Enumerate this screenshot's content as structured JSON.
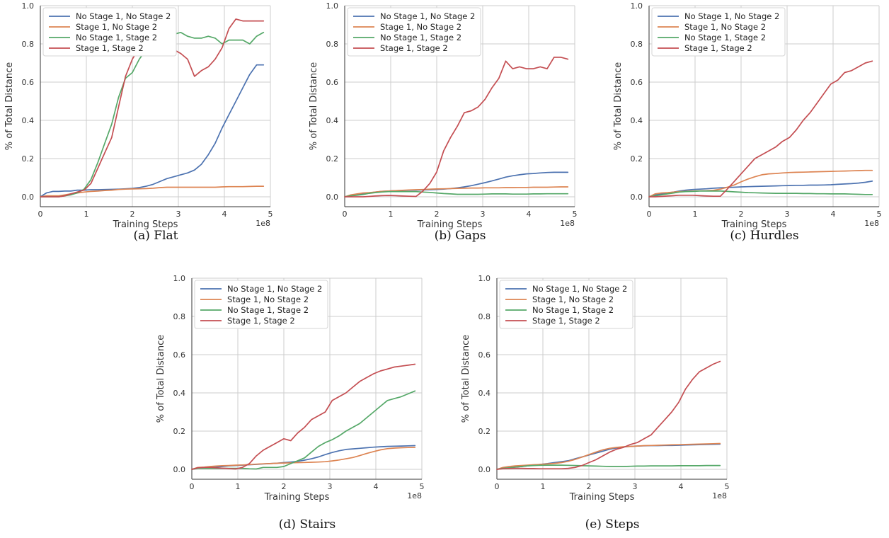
{
  "legend_labels": [
    "No Stage 1, No Stage 2",
    "Stage 1, No Stage 2",
    "No Stage 1, Stage 2",
    "Stage 1, Stage 2"
  ],
  "colors": [
    "#4c72b0",
    "#dd8452",
    "#55a868",
    "#c44e52"
  ],
  "chart_data": [
    {
      "type": "line",
      "caption": "(a) Flat",
      "xlabel": "Training Steps",
      "ylabel": "% of Total Distance",
      "x_scale_label": "1e8",
      "xlim": [
        0,
        5
      ],
      "ylim": [
        0,
        1.0
      ],
      "x_ticks": [
        "0",
        "1",
        "2",
        "3",
        "4",
        "5"
      ],
      "y_ticks": [
        "0.0",
        "0.2",
        "0.4",
        "0.6",
        "0.8",
        "1.0"
      ],
      "grid": true,
      "legend_position": "top-left",
      "x": [
        0,
        0.13,
        0.27,
        0.4,
        0.53,
        0.66,
        0.8,
        0.95,
        1.1,
        1.25,
        1.4,
        1.55,
        1.7,
        1.85,
        2.0,
        2.15,
        2.3,
        2.45,
        2.6,
        2.75,
        2.9,
        3.05,
        3.2,
        3.35,
        3.5,
        3.65,
        3.8,
        3.95,
        4.1,
        4.25,
        4.4,
        4.55,
        4.7,
        4.85
      ],
      "series": [
        {
          "name": "No Stage 1, No Stage 2",
          "values": [
            0.0,
            0.02,
            0.028,
            0.028,
            0.03,
            0.03,
            0.035,
            0.035,
            0.037,
            0.037,
            0.038,
            0.039,
            0.04,
            0.042,
            0.044,
            0.048,
            0.055,
            0.065,
            0.08,
            0.095,
            0.105,
            0.115,
            0.125,
            0.14,
            0.17,
            0.22,
            0.28,
            0.36,
            0.43,
            0.5,
            0.57,
            0.64,
            0.69,
            0.69
          ]
        },
        {
          "name": "Stage 1, No Stage 2",
          "values": [
            0.0,
            0.005,
            0.005,
            0.005,
            0.01,
            0.015,
            0.02,
            0.025,
            0.028,
            0.03,
            0.033,
            0.035,
            0.038,
            0.04,
            0.041,
            0.042,
            0.043,
            0.045,
            0.048,
            0.05,
            0.05,
            0.05,
            0.05,
            0.05,
            0.05,
            0.05,
            0.05,
            0.052,
            0.053,
            0.053,
            0.053,
            0.054,
            0.055,
            0.055
          ]
        },
        {
          "name": "No Stage 1, Stage 2",
          "values": [
            0.0,
            0.0,
            0.0,
            0.0,
            0.005,
            0.01,
            0.02,
            0.04,
            0.09,
            0.18,
            0.28,
            0.38,
            0.52,
            0.62,
            0.65,
            0.72,
            0.77,
            0.78,
            0.8,
            0.86,
            0.85,
            0.86,
            0.84,
            0.83,
            0.83,
            0.84,
            0.83,
            0.8,
            0.82,
            0.82,
            0.82,
            0.8,
            0.84,
            0.86
          ]
        },
        {
          "name": "Stage 1, Stage 2",
          "values": [
            0.0,
            0.0,
            0.0,
            0.0,
            0.005,
            0.015,
            0.025,
            0.035,
            0.07,
            0.15,
            0.23,
            0.31,
            0.47,
            0.63,
            0.72,
            0.78,
            0.83,
            0.84,
            0.84,
            0.8,
            0.77,
            0.75,
            0.72,
            0.63,
            0.66,
            0.68,
            0.72,
            0.78,
            0.88,
            0.93,
            0.92,
            0.92,
            0.92,
            0.92
          ]
        }
      ]
    },
    {
      "type": "line",
      "caption": "(b) Gaps",
      "xlabel": "Training Steps",
      "ylabel": "% of Total Distance",
      "x_scale_label": "1e8",
      "xlim": [
        0,
        5
      ],
      "ylim": [
        0,
        1.0
      ],
      "x_ticks": [
        "0",
        "1",
        "2",
        "3",
        "4",
        "5"
      ],
      "y_ticks": [
        "0.0",
        "0.2",
        "0.4",
        "0.6",
        "0.8",
        "1.0"
      ],
      "grid": true,
      "legend_position": "top-left",
      "x": [
        0,
        0.13,
        0.27,
        0.4,
        0.53,
        0.66,
        0.8,
        0.95,
        1.1,
        1.25,
        1.4,
        1.55,
        1.7,
        1.85,
        2.0,
        2.15,
        2.3,
        2.45,
        2.6,
        2.75,
        2.9,
        3.05,
        3.2,
        3.35,
        3.5,
        3.65,
        3.8,
        3.95,
        4.1,
        4.25,
        4.4,
        4.55,
        4.7,
        4.85
      ],
      "series": [
        {
          "name": "No Stage 1, No Stage 2",
          "values": [
            0.0,
            0.005,
            0.01,
            0.015,
            0.02,
            0.025,
            0.028,
            0.03,
            0.032,
            0.033,
            0.034,
            0.035,
            0.036,
            0.037,
            0.038,
            0.04,
            0.043,
            0.047,
            0.052,
            0.058,
            0.066,
            0.074,
            0.083,
            0.093,
            0.103,
            0.11,
            0.115,
            0.12,
            0.122,
            0.125,
            0.127,
            0.128,
            0.128,
            0.128
          ]
        },
        {
          "name": "Stage 1, No Stage 2",
          "values": [
            0.0,
            0.01,
            0.015,
            0.02,
            0.022,
            0.025,
            0.028,
            0.03,
            0.032,
            0.034,
            0.036,
            0.037,
            0.038,
            0.04,
            0.041,
            0.042,
            0.043,
            0.044,
            0.045,
            0.046,
            0.046,
            0.047,
            0.047,
            0.047,
            0.048,
            0.048,
            0.049,
            0.049,
            0.05,
            0.05,
            0.05,
            0.051,
            0.052,
            0.052
          ]
        },
        {
          "name": "No Stage 1, Stage 2",
          "values": [
            0.0,
            0.005,
            0.008,
            0.012,
            0.018,
            0.022,
            0.025,
            0.027,
            0.027,
            0.027,
            0.027,
            0.027,
            0.025,
            0.023,
            0.02,
            0.017,
            0.015,
            0.013,
            0.013,
            0.013,
            0.013,
            0.014,
            0.015,
            0.015,
            0.015,
            0.014,
            0.014,
            0.014,
            0.015,
            0.015,
            0.016,
            0.016,
            0.016,
            0.016
          ]
        },
        {
          "name": "Stage 1, Stage 2",
          "values": [
            0.0,
            0.0,
            0.0,
            0.0,
            0.002,
            0.004,
            0.006,
            0.007,
            0.006,
            0.004,
            0.003,
            0.002,
            0.03,
            0.07,
            0.13,
            0.24,
            0.31,
            0.37,
            0.44,
            0.45,
            0.47,
            0.51,
            0.57,
            0.62,
            0.71,
            0.67,
            0.68,
            0.67,
            0.67,
            0.68,
            0.67,
            0.73,
            0.73,
            0.72
          ]
        }
      ]
    },
    {
      "type": "line",
      "caption": "(c) Hurdles",
      "xlabel": "Training Steps",
      "ylabel": "% of Total Distance",
      "x_scale_label": "1e8",
      "xlim": [
        0,
        5
      ],
      "ylim": [
        0,
        1.0
      ],
      "x_ticks": [
        "0",
        "1",
        "2",
        "3",
        "4",
        "5"
      ],
      "y_ticks": [
        "0.0",
        "0.2",
        "0.4",
        "0.6",
        "0.8",
        "1.0"
      ],
      "grid": true,
      "legend_position": "top-left",
      "x": [
        0,
        0.13,
        0.27,
        0.4,
        0.53,
        0.66,
        0.8,
        0.95,
        1.1,
        1.25,
        1.4,
        1.55,
        1.7,
        1.85,
        2.0,
        2.15,
        2.3,
        2.45,
        2.6,
        2.75,
        2.9,
        3.05,
        3.2,
        3.35,
        3.5,
        3.65,
        3.8,
        3.95,
        4.1,
        4.25,
        4.4,
        4.55,
        4.7,
        4.85
      ],
      "series": [
        {
          "name": "No Stage 1, No Stage 2",
          "values": [
            0.0,
            0.01,
            0.015,
            0.02,
            0.025,
            0.03,
            0.035,
            0.038,
            0.04,
            0.042,
            0.045,
            0.047,
            0.049,
            0.05,
            0.052,
            0.053,
            0.054,
            0.055,
            0.056,
            0.057,
            0.058,
            0.059,
            0.06,
            0.06,
            0.061,
            0.061,
            0.062,
            0.063,
            0.065,
            0.067,
            0.069,
            0.072,
            0.076,
            0.082
          ]
        },
        {
          "name": "Stage 1, No Stage 2",
          "values": [
            0.0,
            0.015,
            0.02,
            0.022,
            0.025,
            0.027,
            0.029,
            0.03,
            0.031,
            0.032,
            0.034,
            0.04,
            0.05,
            0.062,
            0.078,
            0.093,
            0.105,
            0.115,
            0.12,
            0.122,
            0.125,
            0.127,
            0.128,
            0.129,
            0.13,
            0.131,
            0.132,
            0.133,
            0.134,
            0.135,
            0.136,
            0.137,
            0.138,
            0.138
          ]
        },
        {
          "name": "No Stage 1, Stage 2",
          "values": [
            0.0,
            0.005,
            0.01,
            0.015,
            0.02,
            0.025,
            0.027,
            0.028,
            0.03,
            0.03,
            0.03,
            0.03,
            0.028,
            0.026,
            0.024,
            0.022,
            0.021,
            0.02,
            0.019,
            0.018,
            0.018,
            0.018,
            0.018,
            0.017,
            0.017,
            0.016,
            0.016,
            0.015,
            0.015,
            0.015,
            0.014,
            0.013,
            0.012,
            0.012
          ]
        },
        {
          "name": "Stage 1, Stage 2",
          "values": [
            0.0,
            0.0,
            0.002,
            0.004,
            0.006,
            0.008,
            0.008,
            0.008,
            0.006,
            0.004,
            0.003,
            0.003,
            0.04,
            0.08,
            0.12,
            0.16,
            0.2,
            0.22,
            0.24,
            0.26,
            0.29,
            0.31,
            0.35,
            0.4,
            0.44,
            0.49,
            0.54,
            0.59,
            0.61,
            0.65,
            0.66,
            0.68,
            0.7,
            0.71
          ]
        }
      ]
    },
    {
      "type": "line",
      "caption": "(d) Stairs",
      "xlabel": "Training Steps",
      "ylabel": "% of Total Distance",
      "x_scale_label": "1e8",
      "xlim": [
        0,
        5
      ],
      "ylim": [
        0,
        1.0
      ],
      "x_ticks": [
        "0",
        "1",
        "2",
        "3",
        "4",
        "5"
      ],
      "y_ticks": [
        "0.0",
        "0.2",
        "0.4",
        "0.6",
        "0.8",
        "1.0"
      ],
      "grid": true,
      "legend_position": "top-left",
      "x": [
        0,
        0.13,
        0.27,
        0.4,
        0.53,
        0.66,
        0.8,
        0.95,
        1.1,
        1.25,
        1.4,
        1.55,
        1.7,
        1.85,
        2.0,
        2.15,
        2.3,
        2.45,
        2.6,
        2.75,
        2.9,
        3.05,
        3.2,
        3.35,
        3.5,
        3.65,
        3.8,
        3.95,
        4.1,
        4.25,
        4.4,
        4.55,
        4.7,
        4.85
      ],
      "series": [
        {
          "name": "No Stage 1, No Stage 2",
          "values": [
            0.0,
            0.005,
            0.008,
            0.01,
            0.012,
            0.015,
            0.018,
            0.02,
            0.022,
            0.024,
            0.026,
            0.028,
            0.03,
            0.032,
            0.035,
            0.038,
            0.042,
            0.048,
            0.055,
            0.065,
            0.077,
            0.088,
            0.097,
            0.104,
            0.107,
            0.11,
            0.113,
            0.116,
            0.118,
            0.12,
            0.121,
            0.122,
            0.123,
            0.124
          ]
        },
        {
          "name": "Stage 1, No Stage 2",
          "values": [
            0.0,
            0.01,
            0.012,
            0.015,
            0.017,
            0.019,
            0.02,
            0.022,
            0.023,
            0.025,
            0.027,
            0.029,
            0.03,
            0.032,
            0.033,
            0.034,
            0.035,
            0.036,
            0.037,
            0.038,
            0.04,
            0.044,
            0.049,
            0.055,
            0.062,
            0.072,
            0.083,
            0.093,
            0.102,
            0.108,
            0.111,
            0.113,
            0.114,
            0.115
          ]
        },
        {
          "name": "No Stage 1, Stage 2",
          "values": [
            0.0,
            0.005,
            0.005,
            0.005,
            0.005,
            0.005,
            0.005,
            0.005,
            0.005,
            0.003,
            0.002,
            0.01,
            0.01,
            0.01,
            0.015,
            0.03,
            0.045,
            0.06,
            0.09,
            0.12,
            0.14,
            0.155,
            0.175,
            0.2,
            0.22,
            0.24,
            0.27,
            0.3,
            0.33,
            0.36,
            0.37,
            0.38,
            0.395,
            0.41
          ]
        },
        {
          "name": "Stage 1, Stage 2",
          "values": [
            0.0,
            0.008,
            0.01,
            0.01,
            0.008,
            0.006,
            0.004,
            0.002,
            0.01,
            0.03,
            0.07,
            0.1,
            0.12,
            0.14,
            0.16,
            0.15,
            0.19,
            0.22,
            0.26,
            0.28,
            0.3,
            0.36,
            0.38,
            0.4,
            0.43,
            0.46,
            0.48,
            0.5,
            0.515,
            0.525,
            0.535,
            0.54,
            0.545,
            0.55
          ]
        }
      ]
    },
    {
      "type": "line",
      "caption": "(e) Steps",
      "xlabel": "Training Steps",
      "ylabel": "% of Total Distance",
      "x_scale_label": "1e8",
      "xlim": [
        0,
        5
      ],
      "ylim": [
        0,
        1.0
      ],
      "x_ticks": [
        "0",
        "1",
        "2",
        "3",
        "4",
        "5"
      ],
      "y_ticks": [
        "0.0",
        "0.2",
        "0.4",
        "0.6",
        "0.8",
        "1.0"
      ],
      "grid": true,
      "legend_position": "top-left",
      "x": [
        0,
        0.13,
        0.27,
        0.4,
        0.53,
        0.66,
        0.8,
        0.95,
        1.1,
        1.25,
        1.4,
        1.55,
        1.7,
        1.85,
        2.0,
        2.15,
        2.3,
        2.45,
        2.6,
        2.75,
        2.9,
        3.05,
        3.2,
        3.35,
        3.5,
        3.65,
        3.8,
        3.95,
        4.1,
        4.25,
        4.4,
        4.55,
        4.7,
        4.85
      ],
      "series": [
        {
          "name": "No Stage 1, No Stage 2",
          "values": [
            0.0,
            0.005,
            0.008,
            0.012,
            0.015,
            0.018,
            0.022,
            0.026,
            0.03,
            0.035,
            0.04,
            0.045,
            0.055,
            0.065,
            0.075,
            0.085,
            0.095,
            0.105,
            0.112,
            0.117,
            0.12,
            0.122,
            0.123,
            0.124,
            0.124,
            0.125,
            0.125,
            0.126,
            0.127,
            0.128,
            0.129,
            0.13,
            0.131,
            0.132
          ]
        },
        {
          "name": "Stage 1, No Stage 2",
          "values": [
            0.0,
            0.01,
            0.015,
            0.018,
            0.02,
            0.022,
            0.024,
            0.026,
            0.028,
            0.031,
            0.035,
            0.042,
            0.052,
            0.064,
            0.077,
            0.09,
            0.102,
            0.11,
            0.115,
            0.118,
            0.12,
            0.122,
            0.124,
            0.125,
            0.126,
            0.127,
            0.128,
            0.129,
            0.13,
            0.131,
            0.132,
            0.133,
            0.134,
            0.135
          ]
        },
        {
          "name": "No Stage 1, Stage 2",
          "values": [
            0.0,
            0.005,
            0.008,
            0.012,
            0.015,
            0.018,
            0.02,
            0.021,
            0.022,
            0.022,
            0.022,
            0.021,
            0.02,
            0.019,
            0.018,
            0.017,
            0.016,
            0.015,
            0.015,
            0.015,
            0.016,
            0.017,
            0.017,
            0.018,
            0.018,
            0.018,
            0.018,
            0.019,
            0.019,
            0.019,
            0.019,
            0.02,
            0.02,
            0.02
          ]
        },
        {
          "name": "Stage 1, Stage 2",
          "values": [
            0.0,
            0.003,
            0.004,
            0.005,
            0.005,
            0.004,
            0.004,
            0.003,
            0.003,
            0.003,
            0.003,
            0.005,
            0.01,
            0.02,
            0.035,
            0.05,
            0.07,
            0.09,
            0.105,
            0.115,
            0.13,
            0.14,
            0.16,
            0.18,
            0.22,
            0.26,
            0.3,
            0.35,
            0.42,
            0.47,
            0.51,
            0.53,
            0.55,
            0.565
          ]
        }
      ]
    }
  ]
}
